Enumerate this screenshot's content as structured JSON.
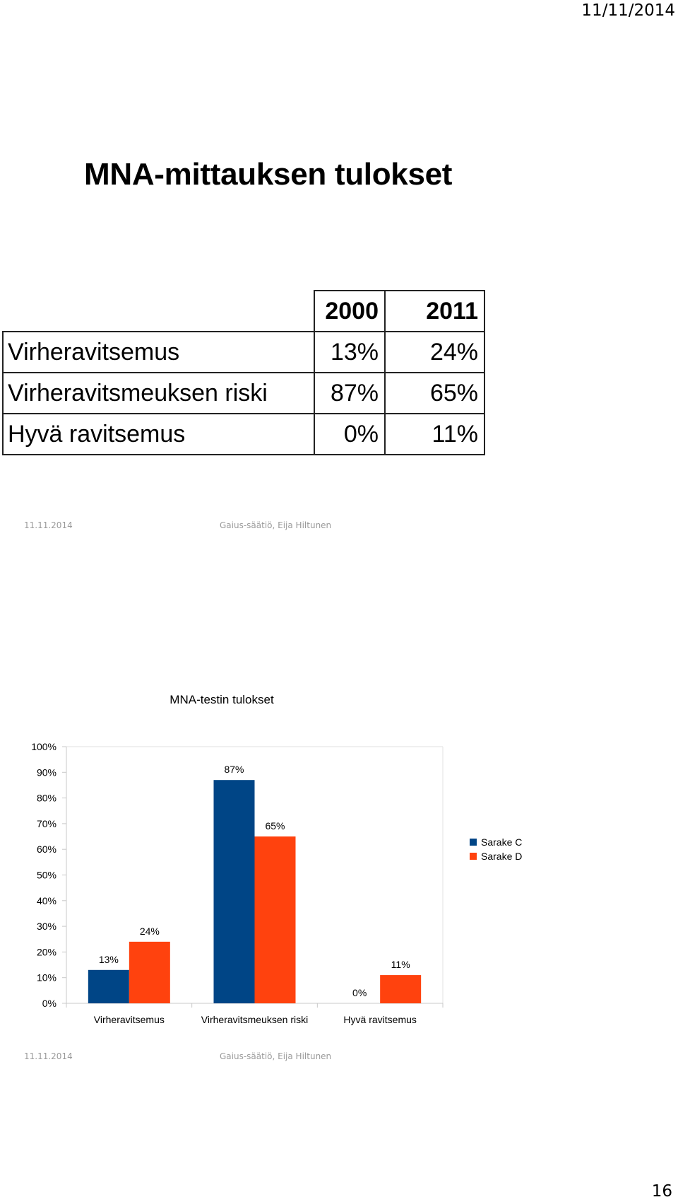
{
  "header": {
    "date": "11/11/2014"
  },
  "slide1": {
    "title": "MNA-mittauksen tulokset",
    "table": {
      "columns": [
        "2000",
        "2011"
      ],
      "rows": [
        {
          "label": "Virheravitsemus",
          "values": [
            "13%",
            "24%"
          ]
        },
        {
          "label": "Virheravitsmeuksen riski",
          "values": [
            "87%",
            "65%"
          ]
        },
        {
          "label": "Hyvä ravitsemus",
          "values": [
            "0%",
            "11%"
          ]
        }
      ]
    },
    "footer": {
      "date": "11.11.2014",
      "author": "Gaius-säätiö, Eija Hiltunen"
    }
  },
  "slide2": {
    "footer": {
      "date": "11.11.2014",
      "author": "Gaius-säätiö, Eija Hiltunen"
    }
  },
  "chart_data": {
    "type": "bar",
    "title": "MNA-testin tulokset",
    "categories": [
      "Virheravitsemus",
      "Virheravitsmeuksen riski",
      "Hyvä ravitsemus"
    ],
    "series": [
      {
        "name": "Sarake C",
        "values": [
          13,
          87,
          0
        ],
        "labels": [
          "13%",
          "87%",
          "0%"
        ],
        "color": "#004586"
      },
      {
        "name": "Sarake D",
        "values": [
          24,
          65,
          11
        ],
        "labels": [
          "24%",
          "65%",
          "11%"
        ],
        "color": "#ff420e"
      }
    ],
    "yticks": [
      "0%",
      "10%",
      "20%",
      "30%",
      "40%",
      "50%",
      "60%",
      "70%",
      "80%",
      "90%",
      "100%"
    ],
    "ylim": [
      0,
      100
    ],
    "legend": "right",
    "grid": false
  },
  "page_number": "16"
}
